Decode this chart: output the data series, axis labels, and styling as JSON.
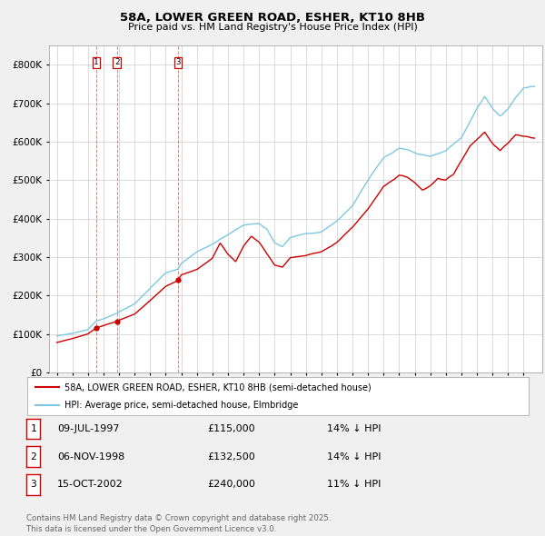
{
  "title": "58A, LOWER GREEN ROAD, ESHER, KT10 8HB",
  "subtitle": "Price paid vs. HM Land Registry's House Price Index (HPI)",
  "legend_line1": "58A, LOWER GREEN ROAD, ESHER, KT10 8HB (semi-detached house)",
  "legend_line2": "HPI: Average price, semi-detached house, Elmbridge",
  "sale_color": "#cc0000",
  "hpi_color": "#7ec8e3",
  "sales": [
    {
      "label": "1",
      "date_num": 1997.52,
      "price": 115000
    },
    {
      "label": "2",
      "date_num": 1998.85,
      "price": 132500
    },
    {
      "label": "3",
      "date_num": 2002.79,
      "price": 240000
    }
  ],
  "table": [
    {
      "num": "1",
      "date": "09-JUL-1997",
      "price": "£115,000",
      "note": "14% ↓ HPI"
    },
    {
      "num": "2",
      "date": "06-NOV-1998",
      "price": "£132,500",
      "note": "14% ↓ HPI"
    },
    {
      "num": "3",
      "date": "15-OCT-2002",
      "price": "£240,000",
      "note": "11% ↓ HPI"
    }
  ],
  "footer": "Contains HM Land Registry data © Crown copyright and database right 2025.\nThis data is licensed under the Open Government Licence v3.0.",
  "ylim": [
    0,
    850000
  ],
  "yticks": [
    0,
    100000,
    200000,
    300000,
    400000,
    500000,
    600000,
    700000,
    800000
  ],
  "xlim_start": 1994.5,
  "xlim_end": 2026.2,
  "background_color": "#f0f0f0",
  "plot_bg": "#ffffff"
}
